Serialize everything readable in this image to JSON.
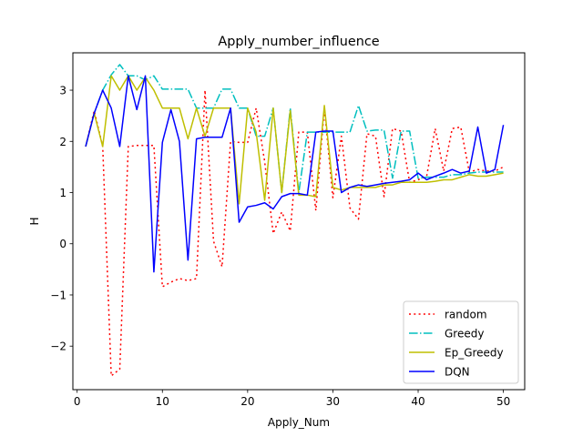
{
  "chart_data": {
    "type": "line",
    "title": "Apply_number_influence",
    "xlabel": "Apply_Num",
    "ylabel": "H",
    "xlim": [
      -0.5,
      52.5
    ],
    "ylim": [
      -2.85,
      3.73
    ],
    "xticks": [
      0,
      10,
      20,
      30,
      40,
      50
    ],
    "yticks": [
      -2,
      -1,
      0,
      1,
      2,
      3
    ],
    "grid": false,
    "legend_position": "lower-right",
    "x": [
      1,
      2,
      3,
      4,
      5,
      6,
      7,
      8,
      9,
      10,
      11,
      12,
      13,
      14,
      15,
      16,
      17,
      18,
      19,
      20,
      21,
      22,
      23,
      24,
      25,
      26,
      27,
      28,
      29,
      30,
      31,
      32,
      33,
      34,
      35,
      36,
      37,
      38,
      39,
      40,
      41,
      42,
      43,
      44,
      45,
      46,
      47,
      48,
      49,
      50
    ],
    "series": [
      {
        "name": "random",
        "color": "#ff0000",
        "style": "dotted",
        "values": [
          1.9,
          2.6,
          1.9,
          -2.58,
          -2.45,
          1.9,
          1.92,
          1.92,
          1.92,
          -0.84,
          -0.75,
          -0.68,
          -0.72,
          -0.68,
          3.0,
          0.05,
          -0.45,
          2.0,
          1.98,
          1.98,
          2.65,
          1.6,
          0.2,
          0.62,
          0.25,
          2.18,
          2.18,
          0.65,
          2.65,
          0.9,
          2.1,
          0.7,
          0.48,
          2.15,
          2.1,
          0.92,
          2.25,
          2.2,
          1.2,
          1.25,
          1.32,
          2.25,
          1.42,
          2.25,
          2.28,
          1.4,
          1.45,
          1.42,
          1.42,
          1.5
        ]
      },
      {
        "name": "Greedy",
        "color": "#00bfbf",
        "style": "dashdot",
        "values": [
          1.9,
          2.55,
          3.0,
          3.3,
          3.5,
          3.28,
          3.28,
          3.2,
          3.28,
          3.02,
          3.02,
          3.02,
          3.02,
          2.65,
          2.65,
          2.65,
          3.02,
          3.02,
          2.65,
          2.65,
          2.1,
          2.1,
          2.65,
          1.0,
          2.65,
          1.0,
          2.18,
          2.18,
          2.18,
          2.18,
          2.18,
          2.18,
          2.7,
          2.2,
          2.22,
          2.22,
          1.28,
          2.2,
          2.2,
          1.28,
          1.3,
          1.3,
          1.3,
          1.35,
          1.35,
          1.38,
          1.4,
          1.4,
          1.4,
          1.4
        ]
      },
      {
        "name": "Ep_Greedy",
        "color": "#bfbf00",
        "style": "solid",
        "values": [
          1.9,
          2.55,
          1.9,
          3.28,
          3.0,
          3.28,
          3.0,
          3.25,
          3.0,
          2.65,
          2.65,
          2.65,
          2.05,
          2.65,
          2.1,
          2.65,
          2.65,
          2.65,
          0.78,
          2.65,
          2.18,
          0.85,
          2.65,
          1.0,
          2.6,
          0.95,
          0.95,
          0.92,
          2.7,
          1.1,
          1.05,
          1.1,
          1.1,
          1.1,
          1.1,
          1.15,
          1.15,
          1.2,
          1.2,
          1.2,
          1.2,
          1.22,
          1.25,
          1.25,
          1.3,
          1.35,
          1.32,
          1.32,
          1.35,
          1.38
        ]
      },
      {
        "name": "DQN",
        "color": "#0000ff",
        "style": "solid",
        "values": [
          1.9,
          2.55,
          3.0,
          2.65,
          1.9,
          3.28,
          2.62,
          3.28,
          -0.55,
          1.98,
          2.62,
          2.0,
          -0.32,
          2.05,
          2.08,
          2.08,
          2.08,
          2.65,
          0.42,
          0.72,
          0.75,
          0.8,
          0.68,
          0.92,
          0.98,
          0.98,
          0.95,
          2.18,
          2.2,
          2.2,
          1.0,
          1.1,
          1.15,
          1.12,
          1.15,
          1.18,
          1.2,
          1.22,
          1.25,
          1.38,
          1.25,
          1.32,
          1.38,
          1.45,
          1.38,
          1.42,
          2.28,
          1.38,
          1.45,
          2.32
        ]
      }
    ]
  }
}
